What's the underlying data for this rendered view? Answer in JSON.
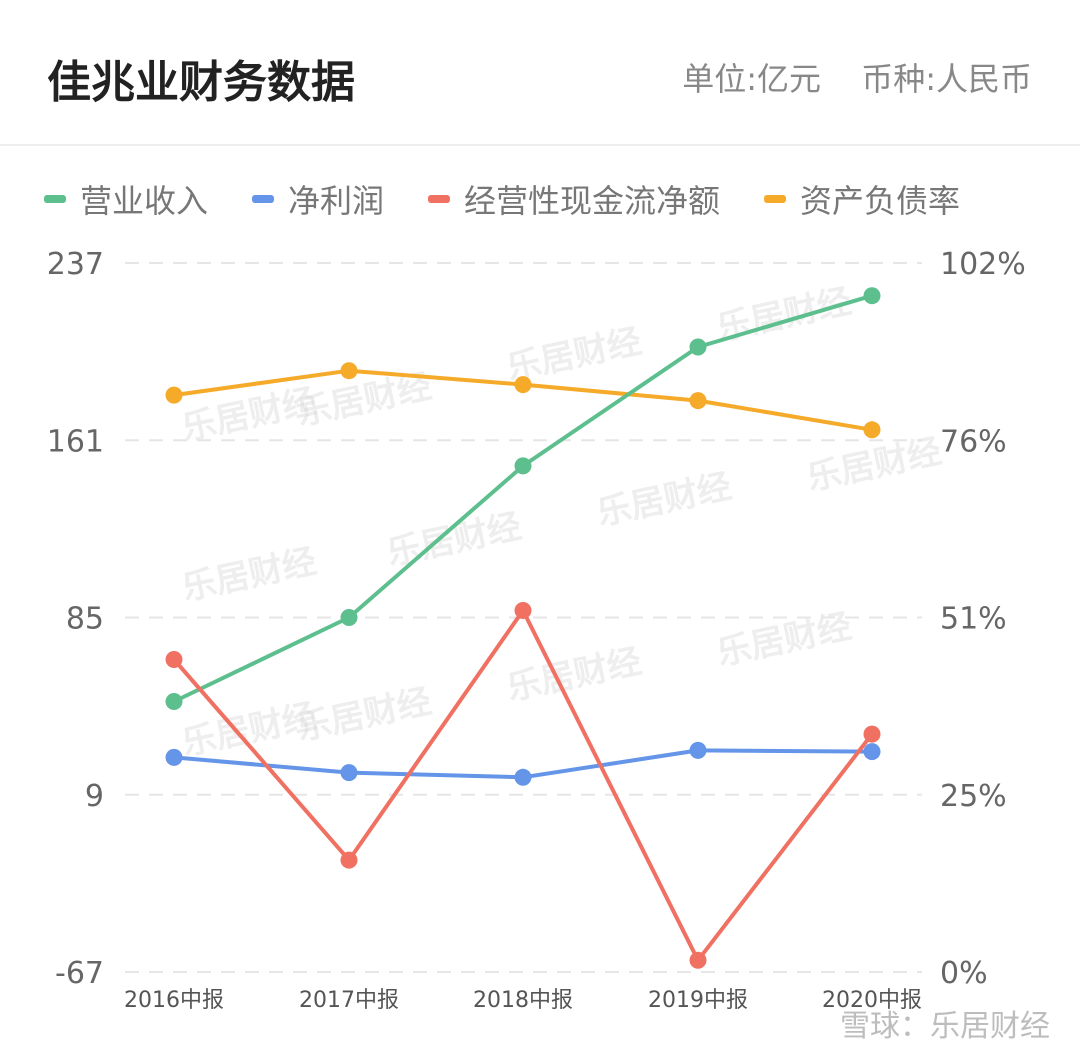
{
  "header": {
    "title": "佳兆业财务数据",
    "unit": "单位:亿元",
    "currency": "币种:人民币"
  },
  "watermark": "乐居财经",
  "credit": "雪球：乐居财经",
  "chart_data": {
    "type": "line",
    "categories": [
      "2016中报",
      "2017中报",
      "2018中报",
      "2019中报",
      "2020中报"
    ],
    "left_axis": {
      "ylim": [
        -67,
        237
      ],
      "ticks": [
        "237",
        "161",
        "85",
        "9",
        "-67"
      ]
    },
    "right_axis": {
      "ylim": [
        0,
        102
      ],
      "ticks": [
        "102%",
        "76%",
        "51%",
        "25%",
        "0%"
      ]
    },
    "grid": true,
    "legend_position": "top",
    "series": [
      {
        "name": "营业收入",
        "axis": "left",
        "color": "#5cbf8d",
        "values": [
          49,
          85,
          150,
          201,
          223
        ]
      },
      {
        "name": "净利润",
        "axis": "left",
        "color": "#6495e8",
        "values": [
          25,
          18.5,
          16.5,
          28,
          27.5
        ]
      },
      {
        "name": "经营性现金流净额",
        "axis": "left",
        "color": "#f07062",
        "values": [
          67,
          -19,
          88,
          -62,
          35
        ]
      },
      {
        "name": "资产负债率",
        "axis": "right",
        "color": "#f5aa2a",
        "values": [
          83,
          86.5,
          84.5,
          82.2,
          78
        ]
      }
    ]
  }
}
